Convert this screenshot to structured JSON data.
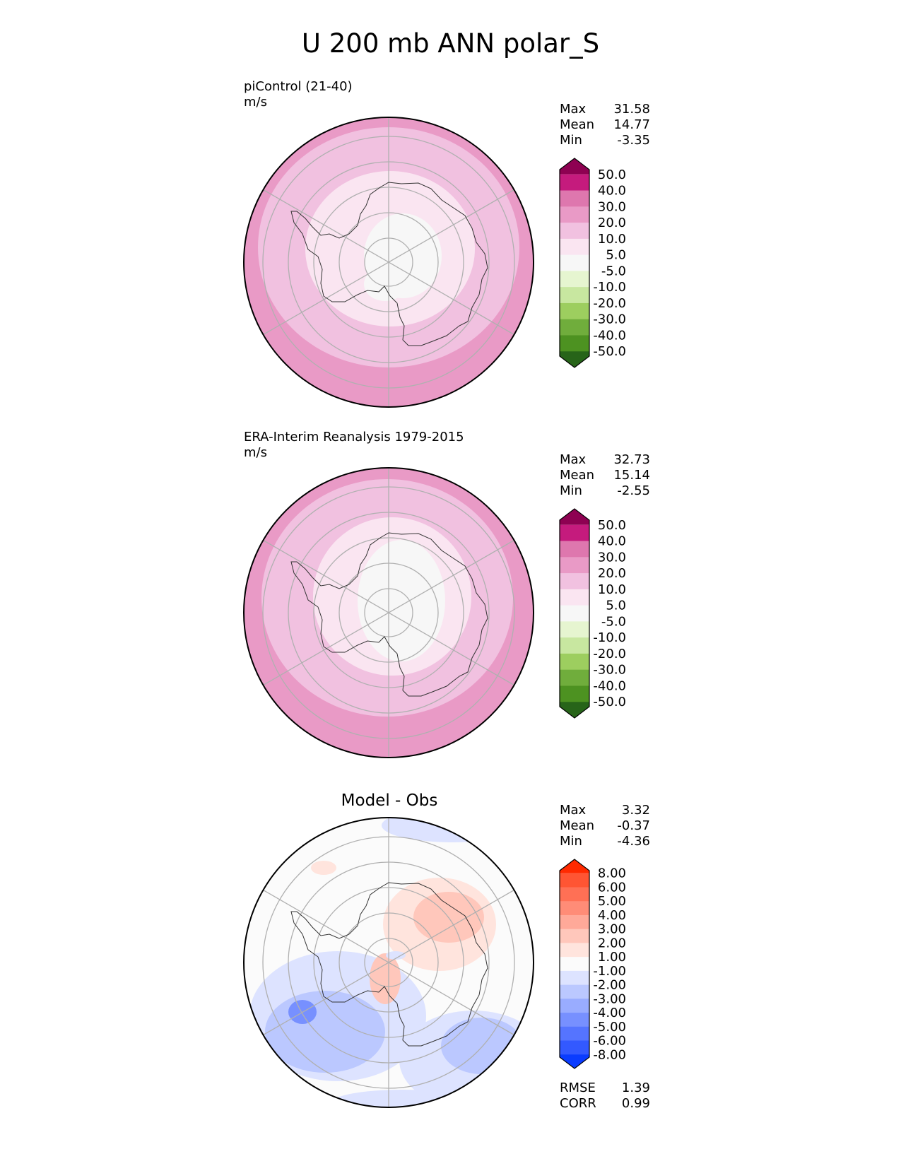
{
  "title": "U 200 mb ANN polar_S",
  "panels": [
    {
      "name": "piControl (21-40)",
      "units": "m/s",
      "stats": [
        {
          "label": "Max",
          "value": "31.58"
        },
        {
          "label": "Mean",
          "value": "14.77"
        },
        {
          "label": "Min",
          "value": "-3.35"
        }
      ],
      "colorbar": {
        "labels": [
          "50.0",
          "40.0",
          "30.0",
          "20.0",
          "10.0",
          "5.0",
          "-5.0",
          "-10.0",
          "-20.0",
          "-30.0",
          "-40.0",
          "-50.0"
        ],
        "colors": [
          "#8e0152",
          "#c51b7d",
          "#de77ae",
          "#e99ac6",
          "#f1c1e0",
          "#fae5f1",
          "#f7f7f7",
          "#e6f5d0",
          "#c8e7a0",
          "#9dce5f",
          "#70ad3c",
          "#4d9221",
          "#276419"
        ]
      }
    },
    {
      "name": "ERA-Interim Reanalysis 1979-2015",
      "units": "m/s",
      "stats": [
        {
          "label": "Max",
          "value": "32.73"
        },
        {
          "label": "Mean",
          "value": "15.14"
        },
        {
          "label": "Min",
          "value": "-2.55"
        }
      ],
      "colorbar": {
        "labels": [
          "50.0",
          "40.0",
          "30.0",
          "20.0",
          "10.0",
          "5.0",
          "-5.0",
          "-10.0",
          "-20.0",
          "-30.0",
          "-40.0",
          "-50.0"
        ],
        "colors": [
          "#8e0152",
          "#c51b7d",
          "#de77ae",
          "#e99ac6",
          "#f1c1e0",
          "#fae5f1",
          "#f7f7f7",
          "#e6f5d0",
          "#c8e7a0",
          "#9dce5f",
          "#70ad3c",
          "#4d9221",
          "#276419"
        ]
      }
    },
    {
      "name": "Model - Obs",
      "units": "",
      "stats": [
        {
          "label": "Max",
          "value": "3.32"
        },
        {
          "label": "Mean",
          "value": "-0.37"
        },
        {
          "label": "Min",
          "value": "-4.36"
        }
      ],
      "colorbar": {
        "labels": [
          "8.00",
          "6.00",
          "5.00",
          "4.00",
          "3.00",
          "2.00",
          "1.00",
          "-1.00",
          "-2.00",
          "-3.00",
          "-4.00",
          "-5.00",
          "-6.00",
          "-8.00"
        ],
        "colors": [
          "#ff2a00",
          "#ff5533",
          "#ff7055",
          "#ff8c77",
          "#ffa999",
          "#ffc7bb",
          "#ffe4dd",
          "#fbfbfb",
          "#dde3ff",
          "#bbc8ff",
          "#99acff",
          "#7790ff",
          "#5574ff",
          "#3359ff",
          "#0a3cff"
        ]
      },
      "metrics": [
        {
          "label": "RMSE",
          "value": "1.39"
        },
        {
          "label": "CORR",
          "value": "0.99"
        }
      ]
    }
  ]
}
